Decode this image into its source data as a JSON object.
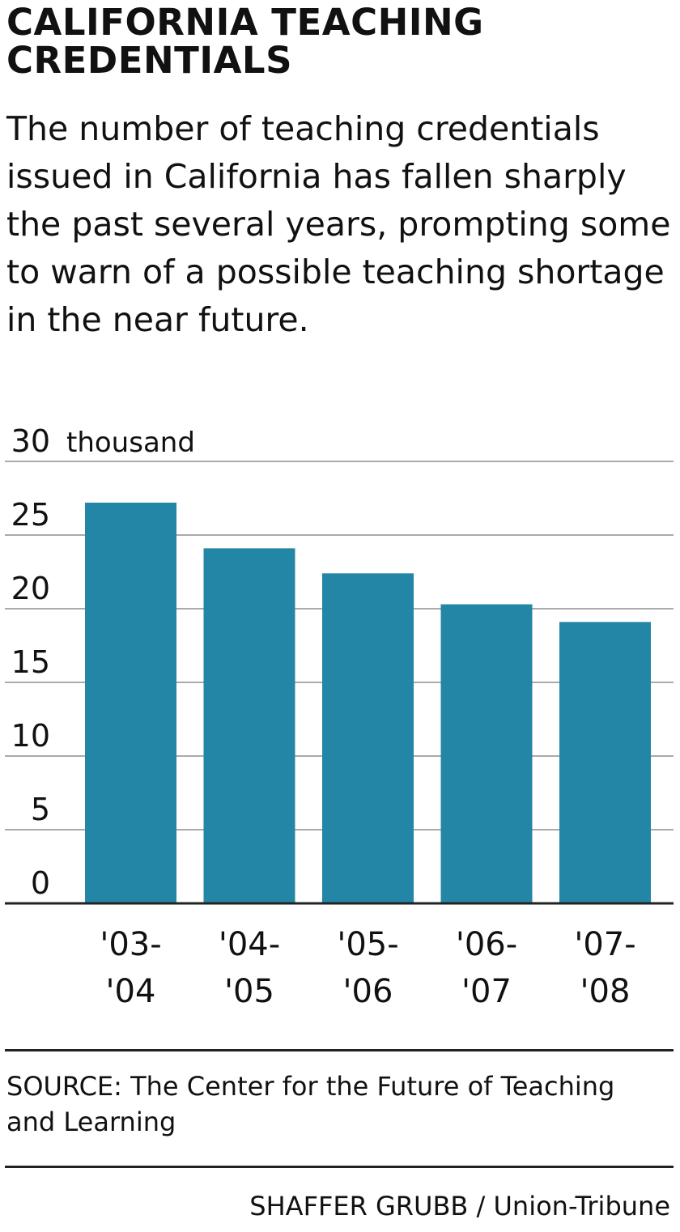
{
  "header": {
    "title": "CALIFORNIA TEACHING CREDENTIALS",
    "subtitle": "The number of teaching credentials issued in California has fallen sharply the past several years, prompting some to warn of a possible teaching shortage in the near future."
  },
  "footer": {
    "source": "SOURCE: The Center for the Future of Teaching and Learning",
    "credit": "SHAFFER GRUBB / Union-Tribune"
  },
  "colors": {
    "bar": "#2386a6",
    "gridline": "#aaaaaa",
    "axis": "#222222"
  },
  "chart_data": {
    "type": "bar",
    "title": "CALIFORNIA TEACHING CREDENTIALS",
    "ylabel": "thousand",
    "unit_label": "thousand",
    "ylim": [
      0,
      30
    ],
    "yticks": [
      0,
      5,
      10,
      15,
      20,
      25,
      30
    ],
    "grid": true,
    "categories": [
      [
        "'03-",
        "'04"
      ],
      [
        "'04-",
        "'05"
      ],
      [
        "'05-",
        "'06"
      ],
      [
        "'06-",
        "'07"
      ],
      [
        "'07-",
        "'08"
      ]
    ],
    "values": [
      27.2,
      24.1,
      22.4,
      20.3,
      19.1
    ]
  }
}
